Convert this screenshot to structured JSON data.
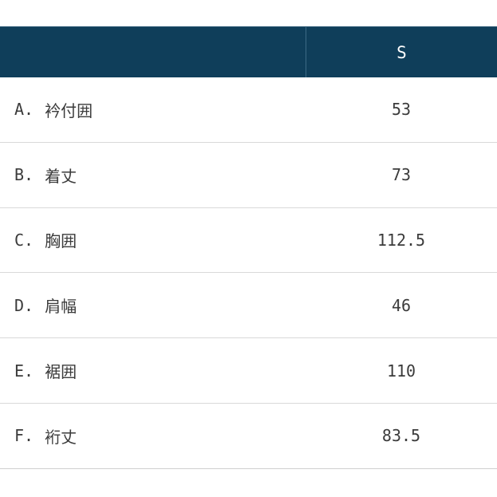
{
  "table": {
    "header": {
      "measure_col": "",
      "size_col": "S"
    },
    "rows": [
      {
        "letter": "A.",
        "label": "衿付囲",
        "value": "53"
      },
      {
        "letter": "B.",
        "label": "着丈",
        "value": "73"
      },
      {
        "letter": "C.",
        "label": "胸囲",
        "value": "112.5"
      },
      {
        "letter": "D.",
        "label": "肩幅",
        "value": "46"
      },
      {
        "letter": "E.",
        "label": "裾囲",
        "value": "110"
      },
      {
        "letter": "F.",
        "label": "裄丈",
        "value": "83.5"
      }
    ],
    "colors": {
      "header_background": "#0f3e5a",
      "header_divider": "#3d6a85",
      "header_text": "#ffffff",
      "body_text": "#3b3b3b",
      "row_separator": "#d9d9d9",
      "page_background": "#ffffff"
    }
  }
}
